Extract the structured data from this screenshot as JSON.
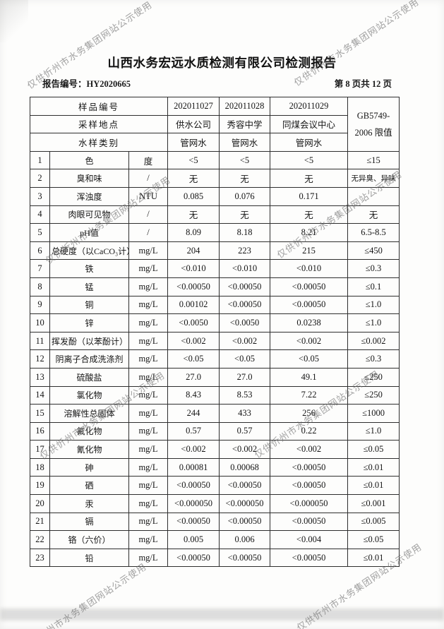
{
  "watermark": {
    "text": "仅供忻州市水务集团网站公示使用"
  },
  "header": {
    "title": "山西水务宏远水质检测有限公司检测报告",
    "report_no_label": "报告编号：",
    "report_no": "HY2020665",
    "page_info": "第 8 页共 12 页"
  },
  "table": {
    "meta_rows": [
      {
        "label": "样品编号",
        "values": [
          "202011027",
          "202011028",
          "202011029"
        ]
      },
      {
        "label": "采样地点",
        "values": [
          "供水公司",
          "秀容中学",
          "同煤会议中心"
        ]
      },
      {
        "label": "水样类别",
        "values": [
          "管网水",
          "管网水",
          "管网水"
        ]
      }
    ],
    "limit_header": [
      "GB5749-",
      "2006 限值"
    ],
    "rows": [
      {
        "no": "1",
        "name": "色",
        "unit": "度",
        "values": [
          "<5",
          "<5",
          "<5"
        ],
        "limit": "≤15"
      },
      {
        "no": "2",
        "name": "臭和味",
        "unit": "/",
        "values": [
          "无",
          "无",
          "无"
        ],
        "limit": "无异臭、异味"
      },
      {
        "no": "3",
        "name": "浑浊度",
        "unit": "NTU",
        "values": [
          "0.085",
          "0.076",
          "0.171"
        ],
        "limit": ""
      },
      {
        "no": "4",
        "name": "肉眼可见物",
        "unit": "/",
        "values": [
          "无",
          "无",
          "无"
        ],
        "limit": "无"
      },
      {
        "no": "5",
        "name": "pH值",
        "unit": "/",
        "values": [
          "8.09",
          "8.18",
          "8.21"
        ],
        "limit": "6.5-8.5"
      },
      {
        "no": "6",
        "name": "总硬度（以CaCO₃计）",
        "unit": "mg/L",
        "values": [
          "204",
          "223",
          "215"
        ],
        "limit": "≤450"
      },
      {
        "no": "7",
        "name": "铁",
        "unit": "mg/L",
        "values": [
          "<0.010",
          "<0.010",
          "<0.010"
        ],
        "limit": "≤0.3"
      },
      {
        "no": "8",
        "name": "锰",
        "unit": "mg/L",
        "values": [
          "<0.00050",
          "<0.00050",
          "<0.00050"
        ],
        "limit": "≤0.1"
      },
      {
        "no": "9",
        "name": "铜",
        "unit": "mg/L",
        "values": [
          "0.00102",
          "<0.00050",
          "<0.00050"
        ],
        "limit": "≤1.0"
      },
      {
        "no": "10",
        "name": "锌",
        "unit": "mg/L",
        "values": [
          "<0.0050",
          "<0.0050",
          "0.0238"
        ],
        "limit": "≤1.0"
      },
      {
        "no": "11",
        "name": "挥发酚（以苯酚计）",
        "unit": "mg/L",
        "values": [
          "<0.002",
          "<0.002",
          "<0.002"
        ],
        "limit": "≤0.002"
      },
      {
        "no": "12",
        "name": "阴离子合成洗涤剂",
        "unit": "mg/L",
        "values": [
          "<0.05",
          "<0.05",
          "<0.05"
        ],
        "limit": "≤0.3"
      },
      {
        "no": "13",
        "name": "硫酸盐",
        "unit": "mg/L",
        "values": [
          "27.0",
          "27.0",
          "49.1"
        ],
        "limit": "≤250"
      },
      {
        "no": "14",
        "name": "氯化物",
        "unit": "mg/L",
        "values": [
          "8.43",
          "8.53",
          "7.22"
        ],
        "limit": "≤250"
      },
      {
        "no": "15",
        "name": "溶解性总固体",
        "unit": "mg/L",
        "values": [
          "244",
          "433",
          "256"
        ],
        "limit": "≤1000"
      },
      {
        "no": "16",
        "name": "氟化物",
        "unit": "mg/L",
        "values": [
          "0.57",
          "0.57",
          "0.22"
        ],
        "limit": "≤1.0"
      },
      {
        "no": "17",
        "name": "氰化物",
        "unit": "mg/L",
        "values": [
          "<0.002",
          "<0.002",
          "<0.002"
        ],
        "limit": "≤0.05"
      },
      {
        "no": "18",
        "name": "砷",
        "unit": "mg/L",
        "values": [
          "0.00081",
          "0.00068",
          "<0.00050"
        ],
        "limit": "≤0.01"
      },
      {
        "no": "19",
        "name": "硒",
        "unit": "mg/L",
        "values": [
          "<0.00050",
          "<0.00050",
          "<0.00050"
        ],
        "limit": "≤0.01"
      },
      {
        "no": "20",
        "name": "汞",
        "unit": "mg/L",
        "values": [
          "<0.000050",
          "<0.000050",
          "<0.000050"
        ],
        "limit": "≤0.001"
      },
      {
        "no": "21",
        "name": "镉",
        "unit": "mg/L",
        "values": [
          "<0.00050",
          "<0.00050",
          "<0.00050"
        ],
        "limit": "≤0.005"
      },
      {
        "no": "22",
        "name": "铬（六价）",
        "unit": "mg/L",
        "values": [
          "0.005",
          "0.006",
          "<0.004"
        ],
        "limit": "≤0.05"
      },
      {
        "no": "23",
        "name": "铅",
        "unit": "mg/L",
        "values": [
          "<0.00050",
          "<0.00050",
          "<0.00050"
        ],
        "limit": "≤0.01"
      }
    ]
  }
}
